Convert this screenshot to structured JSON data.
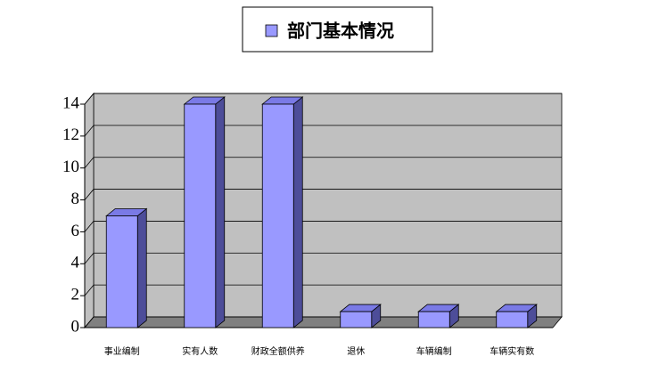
{
  "chart_data": {
    "type": "bar",
    "categories": [
      "事业编制",
      "实有人数",
      "财政全额供养",
      "退休",
      "车辆编制",
      "车辆实有数"
    ],
    "series": [
      {
        "name": "部门基本情况",
        "color": "#9999ff",
        "values": [
          7,
          14,
          14,
          1,
          1,
          1
        ]
      }
    ],
    "ylim": [
      0,
      14
    ],
    "yticks": [
      0,
      2,
      4,
      6,
      8,
      10,
      12,
      14
    ],
    "grid": true,
    "legend": "top"
  }
}
